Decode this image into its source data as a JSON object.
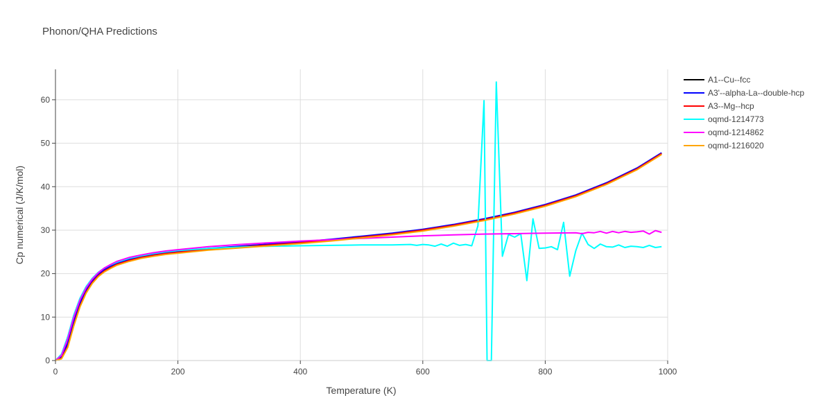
{
  "chart_data": {
    "type": "line",
    "title": "Phonon/QHA Predictions",
    "xlabel": "Temperature (K)",
    "ylabel": "Cp numerical (J/K/mol)",
    "xlim": [
      0,
      1000
    ],
    "ylim": [
      0,
      67
    ],
    "xticks": [
      0,
      200,
      400,
      600,
      800,
      1000
    ],
    "yticks": [
      0,
      10,
      20,
      30,
      40,
      50,
      60
    ],
    "grid": true,
    "legend_position": "top-right",
    "series": [
      {
        "name": "A1--Cu--fcc",
        "color": "#000000",
        "x": [
          0,
          10,
          20,
          30,
          40,
          50,
          60,
          70,
          80,
          90,
          100,
          120,
          140,
          160,
          180,
          200,
          250,
          300,
          350,
          400,
          450,
          500,
          550,
          600,
          650,
          700,
          750,
          800,
          850,
          900,
          950,
          990
        ],
        "y": [
          0,
          0.6,
          3.5,
          8.5,
          12.8,
          15.9,
          18.0,
          19.6,
          20.7,
          21.5,
          22.2,
          23.1,
          23.8,
          24.3,
          24.7,
          25.0,
          25.7,
          26.2,
          26.7,
          27.2,
          27.8,
          28.5,
          29.2,
          30.1,
          31.2,
          32.5,
          34.0,
          35.8,
          38.0,
          40.8,
          44.2,
          47.7
        ]
      },
      {
        "name": "A3'--alpha-La--double-hcp",
        "color": "#0000ff",
        "x": [
          0,
          10,
          20,
          30,
          40,
          50,
          60,
          70,
          80,
          90,
          100,
          120,
          140,
          160,
          180,
          200,
          250,
          300,
          350,
          400,
          450,
          500,
          550,
          600,
          650,
          700,
          750,
          800,
          850,
          900,
          950,
          990
        ],
        "y": [
          0,
          0.8,
          4.0,
          9.0,
          13.2,
          16.2,
          18.3,
          19.8,
          20.9,
          21.7,
          22.4,
          23.3,
          23.9,
          24.4,
          24.8,
          25.1,
          25.8,
          26.3,
          26.8,
          27.3,
          27.9,
          28.6,
          29.3,
          30.2,
          31.3,
          32.6,
          34.1,
          35.9,
          38.1,
          40.9,
          44.3,
          47.8
        ]
      },
      {
        "name": "A3--Mg--hcp",
        "color": "#ff0000",
        "x": [
          0,
          10,
          20,
          30,
          40,
          50,
          60,
          70,
          80,
          90,
          100,
          120,
          140,
          160,
          180,
          200,
          250,
          300,
          350,
          400,
          450,
          500,
          550,
          600,
          650,
          700,
          750,
          800,
          850,
          900,
          950,
          990
        ],
        "y": [
          0,
          0.5,
          3.2,
          8.2,
          12.5,
          15.7,
          17.9,
          19.5,
          20.6,
          21.4,
          22.1,
          23.0,
          23.7,
          24.2,
          24.6,
          24.9,
          25.6,
          26.1,
          26.6,
          27.1,
          27.7,
          28.4,
          29.1,
          30.0,
          31.1,
          32.4,
          33.9,
          35.7,
          37.9,
          40.7,
          44.1,
          47.6
        ]
      },
      {
        "name": "oqmd-1214773",
        "color": "#00ffff",
        "x": [
          0,
          10,
          20,
          30,
          40,
          50,
          60,
          70,
          80,
          90,
          100,
          120,
          140,
          160,
          180,
          200,
          250,
          300,
          350,
          400,
          450,
          500,
          550,
          580,
          590,
          600,
          610,
          620,
          630,
          640,
          650,
          660,
          670,
          680,
          690,
          700,
          705,
          712,
          720,
          730,
          740,
          750,
          760,
          770,
          780,
          790,
          800,
          810,
          820,
          830,
          840,
          850,
          860,
          870,
          880,
          890,
          900,
          910,
          920,
          930,
          940,
          950,
          960,
          970,
          980,
          990
        ],
        "y": [
          0,
          1.5,
          5.5,
          10.5,
          14.3,
          17.0,
          18.9,
          20.3,
          21.3,
          22.0,
          22.6,
          23.5,
          24.1,
          24.6,
          25.0,
          25.3,
          25.8,
          26.1,
          26.3,
          26.4,
          26.5,
          26.6,
          26.6,
          26.7,
          26.5,
          26.7,
          26.6,
          26.3,
          26.8,
          26.3,
          27.0,
          26.5,
          26.7,
          26.4,
          31.0,
          59.8,
          0,
          0,
          64.1,
          24.0,
          29.0,
          28.4,
          29.2,
          18.4,
          32.6,
          25.8,
          25.9,
          26.2,
          25.5,
          31.8,
          19.4,
          25.3,
          29.3,
          26.7,
          25.8,
          26.8,
          26.2,
          26.1,
          26.6,
          26.0,
          26.3,
          26.2,
          26.0,
          26.5,
          26.0,
          26.2
        ]
      },
      {
        "name": "oqmd-1214862",
        "color": "#ff00ff",
        "x": [
          0,
          10,
          20,
          30,
          40,
          50,
          60,
          70,
          80,
          90,
          100,
          120,
          140,
          160,
          180,
          200,
          250,
          300,
          350,
          400,
          450,
          500,
          550,
          600,
          650,
          700,
          750,
          800,
          850,
          860,
          870,
          880,
          890,
          900,
          910,
          920,
          930,
          940,
          950,
          960,
          970,
          980,
          990
        ],
        "y": [
          0,
          1.2,
          5.0,
          10.0,
          13.9,
          16.7,
          18.7,
          20.2,
          21.3,
          22.1,
          22.8,
          23.7,
          24.3,
          24.8,
          25.2,
          25.5,
          26.2,
          26.7,
          27.1,
          27.5,
          27.8,
          28.1,
          28.4,
          28.7,
          28.9,
          29.1,
          29.2,
          29.3,
          29.4,
          29.2,
          29.5,
          29.4,
          29.7,
          29.3,
          29.7,
          29.4,
          29.7,
          29.5,
          29.6,
          29.8,
          29.1,
          29.9,
          29.5
        ]
      },
      {
        "name": "oqmd-1216020",
        "color": "#ffa500",
        "x": [
          0,
          10,
          20,
          30,
          40,
          50,
          60,
          70,
          80,
          90,
          100,
          120,
          140,
          160,
          180,
          200,
          250,
          300,
          350,
          400,
          450,
          500,
          550,
          600,
          650,
          700,
          750,
          800,
          850,
          900,
          950,
          990
        ],
        "y": [
          0,
          0.4,
          3.0,
          8.0,
          12.3,
          15.5,
          17.7,
          19.3,
          20.4,
          21.2,
          21.9,
          22.8,
          23.5,
          24.0,
          24.4,
          24.7,
          25.4,
          25.9,
          26.4,
          26.9,
          27.5,
          28.2,
          28.9,
          29.8,
          30.9,
          32.2,
          33.7,
          35.5,
          37.7,
          40.5,
          43.9,
          47.4
        ]
      }
    ]
  }
}
